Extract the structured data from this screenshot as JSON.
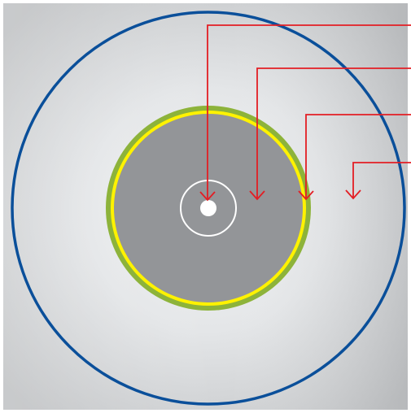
{
  "diagram": {
    "kind": "concentric-cross-section",
    "layers_inner_to_outer": [
      {
        "name": "center-dot",
        "color": "#ffffff"
      },
      {
        "name": "inner-ring",
        "color": "#ffffff"
      },
      {
        "name": "core",
        "color": "#939598"
      },
      {
        "name": "yellow-ring",
        "color": "#fff200"
      },
      {
        "name": "green-ring",
        "color": "#8db33a"
      },
      {
        "name": "outer-field",
        "color": "#e3e5e7"
      },
      {
        "name": "outer-boundary",
        "color": "#0a4f9a"
      }
    ],
    "callouts": {
      "count": 4,
      "color": "#e31e24",
      "labels": []
    }
  },
  "colors": {
    "backdrop_light": "#eceeef",
    "backdrop_dark": "#bfc1c3"
  }
}
